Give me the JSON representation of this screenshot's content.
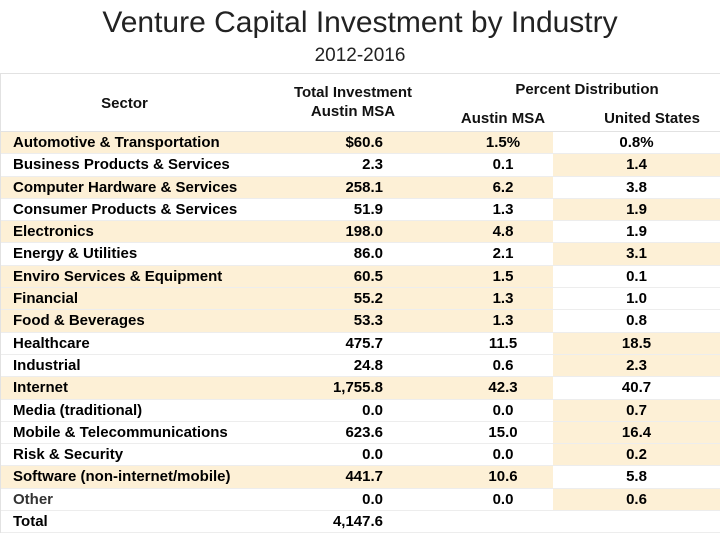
{
  "title": "Venture Capital Investment by Industry",
  "subtitle": "2012-2016",
  "headers": {
    "sector": "Sector",
    "total_line1": "Total Investment",
    "total_line2": "Austin MSA",
    "percent_distribution": "Percent Distribution",
    "austin": "Austin MSA",
    "us": "United States"
  },
  "rows": [
    {
      "sector": "Automotive & Transportation",
      "total": "$60.6",
      "austin": "1.5%",
      "us": "0.8%"
    },
    {
      "sector": "Business Products & Services",
      "total": "2.3",
      "austin": "0.1",
      "us": "1.4"
    },
    {
      "sector": "Computer Hardware & Services",
      "total": "258.1",
      "austin": "6.2",
      "us": "3.8"
    },
    {
      "sector": "Consumer Products & Services",
      "total": "51.9",
      "austin": "1.3",
      "us": "1.9"
    },
    {
      "sector": "Electronics",
      "total": "198.0",
      "austin": "4.8",
      "us": "1.9"
    },
    {
      "sector": "Energy & Utilities",
      "total": "86.0",
      "austin": "2.1",
      "us": "3.1"
    },
    {
      "sector": "Enviro Services & Equipment",
      "total": "60.5",
      "austin": "1.5",
      "us": "0.1"
    },
    {
      "sector": "Financial",
      "total": "55.2",
      "austin": "1.3",
      "us": "1.0"
    },
    {
      "sector": "Food & Beverages",
      "total": "53.3",
      "austin": "1.3",
      "us": "0.8"
    },
    {
      "sector": "Healthcare",
      "total": "475.7",
      "austin": "11.5",
      "us": "18.5"
    },
    {
      "sector": "Industrial",
      "total": "24.8",
      "austin": "0.6",
      "us": "2.3"
    },
    {
      "sector": "Internet",
      "total": "1,755.8",
      "austin": "42.3",
      "us": "40.7"
    },
    {
      "sector": "Media (traditional)",
      "total": "0.0",
      "austin": "0.0",
      "us": "0.7"
    },
    {
      "sector": "Mobile & Telecommunications",
      "total": "623.6",
      "austin": "15.0",
      "us": "16.4"
    },
    {
      "sector": "Risk & Security",
      "total": "0.0",
      "austin": "0.0",
      "us": "0.2"
    },
    {
      "sector": "Software (non-internet/mobile)",
      "total": "441.7",
      "austin": "10.6",
      "us": "5.8"
    },
    {
      "sector": "Other",
      "total": "0.0",
      "austin": "0.0",
      "us": "0.6"
    },
    {
      "sector": "Total",
      "total": "4,147.6",
      "austin": "",
      "us": ""
    }
  ],
  "highlight_color": "#fdf0d6"
}
